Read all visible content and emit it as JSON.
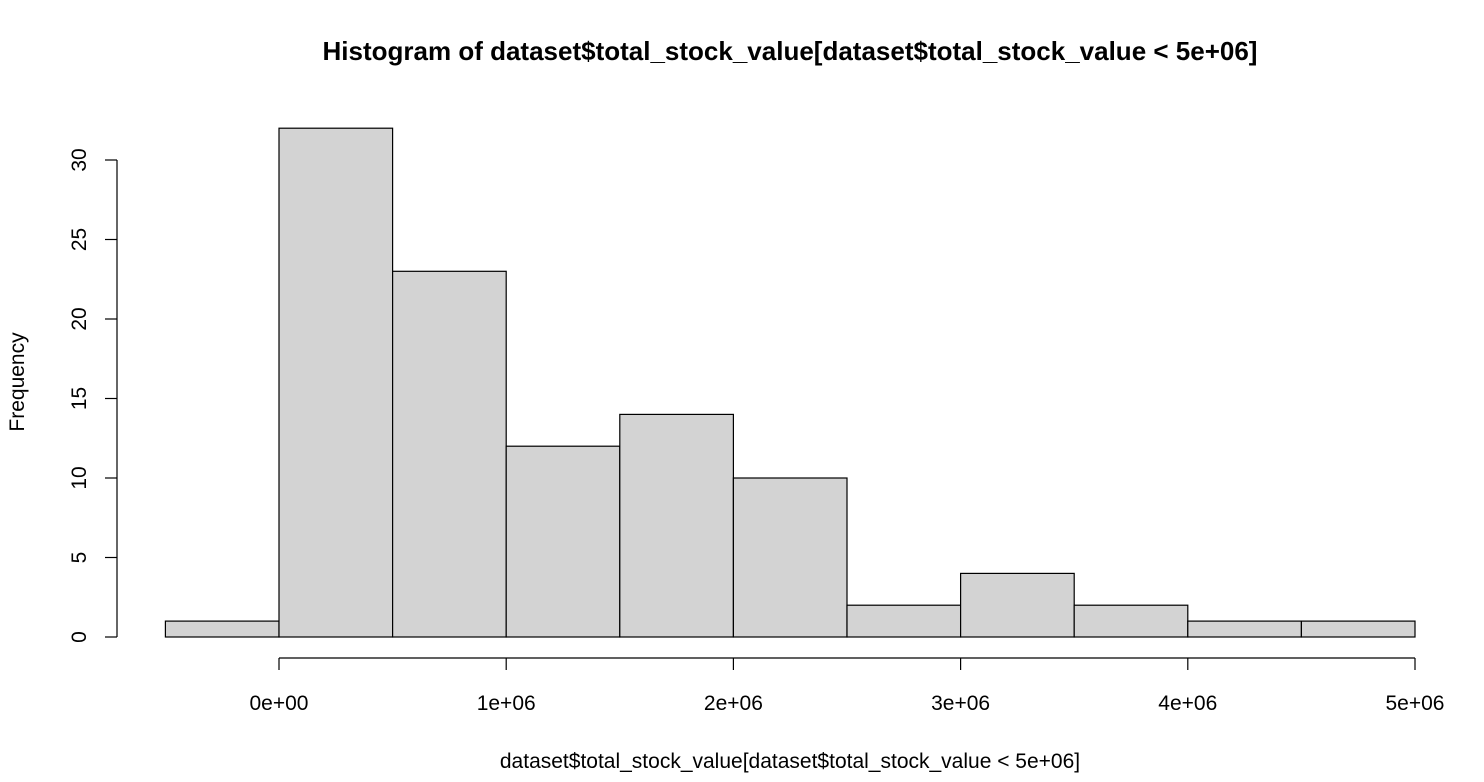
{
  "chart_data": {
    "type": "bar",
    "title": "Histogram of dataset$total_stock_value[dataset$total_stock_value < 5e+06]",
    "xlabel": "dataset$total_stock_value[dataset$total_stock_value < 5e+06]",
    "ylabel": "Frequency",
    "bin_width": 500000,
    "bins": [
      {
        "start": -500000,
        "end": 0,
        "count": 1
      },
      {
        "start": 0,
        "end": 500000,
        "count": 32
      },
      {
        "start": 500000,
        "end": 1000000,
        "count": 23
      },
      {
        "start": 1000000,
        "end": 1500000,
        "count": 12
      },
      {
        "start": 1500000,
        "end": 2000000,
        "count": 14
      },
      {
        "start": 2000000,
        "end": 2500000,
        "count": 10
      },
      {
        "start": 2500000,
        "end": 3000000,
        "count": 2
      },
      {
        "start": 3000000,
        "end": 3500000,
        "count": 4
      },
      {
        "start": 3500000,
        "end": 4000000,
        "count": 2
      },
      {
        "start": 4000000,
        "end": 4500000,
        "count": 1
      },
      {
        "start": 4500000,
        "end": 5000000,
        "count": 1
      }
    ],
    "x_ticks": [
      {
        "value": 0,
        "label": "0e+00"
      },
      {
        "value": 1000000,
        "label": "1e+06"
      },
      {
        "value": 2000000,
        "label": "2e+06"
      },
      {
        "value": 3000000,
        "label": "3e+06"
      },
      {
        "value": 4000000,
        "label": "4e+06"
      },
      {
        "value": 5000000,
        "label": "5e+06"
      }
    ],
    "y_ticks": [
      {
        "value": 0,
        "label": "0"
      },
      {
        "value": 5,
        "label": "5"
      },
      {
        "value": 10,
        "label": "10"
      },
      {
        "value": 15,
        "label": "15"
      },
      {
        "value": 20,
        "label": "20"
      },
      {
        "value": 25,
        "label": "25"
      },
      {
        "value": 30,
        "label": "30"
      }
    ],
    "xlim": [
      -500000,
      5000000
    ],
    "ylim": [
      0,
      32
    ],
    "grid": false,
    "bar_fill": "#d3d3d3",
    "bar_stroke": "#000000"
  }
}
